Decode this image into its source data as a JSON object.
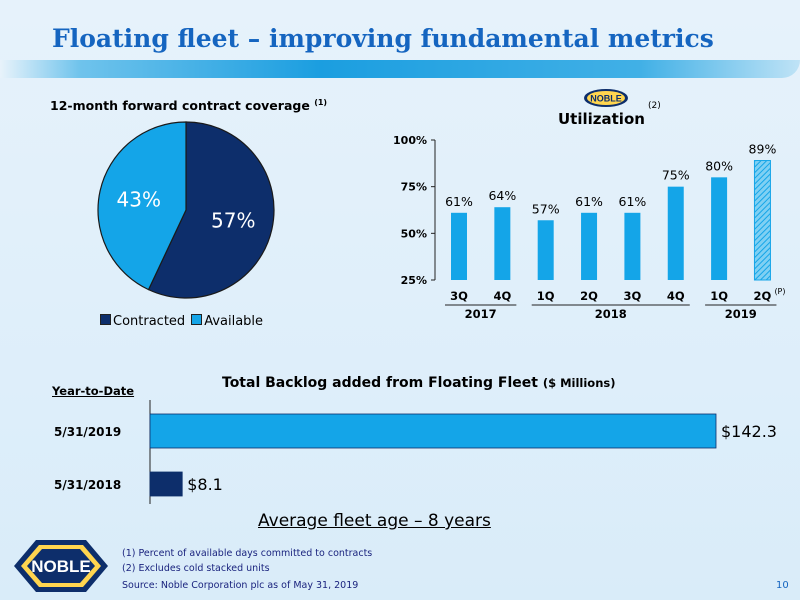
{
  "page": {
    "title": "Floating fleet – improving fundamental metrics",
    "page_number": "10",
    "avg_fleet_age": "Average fleet age – 8 years",
    "footnotes": [
      "(1) Percent of available days committed to contracts",
      "(2) Excludes cold stacked units",
      "Source: Noble Corporation plc as of May 31, 2019"
    ],
    "logo_text": "NOBLE",
    "logo_text_small": "NOBLE",
    "colors": {
      "dark_navy": "#0d2e6b",
      "light_blue": "#14a5e8",
      "title_blue": "#1565c0"
    }
  },
  "chart_data": [
    {
      "type": "pie",
      "title": "12-month forward contract coverage",
      "title_note": "(1)",
      "slices": [
        {
          "label": "Contracted",
          "value": 57,
          "display": "57%",
          "color": "#0d2e6b"
        },
        {
          "label": "Available",
          "value": 43,
          "display": "43%",
          "color": "#14a5e8"
        }
      ],
      "legend_position": "bottom"
    },
    {
      "type": "bar",
      "title": "Utilization",
      "title_note": "(2)",
      "categories": [
        "3Q",
        "4Q",
        "1Q",
        "2Q",
        "3Q",
        "4Q",
        "1Q",
        "2Q"
      ],
      "category_notes": [
        "",
        "",
        "",
        "",
        "",
        "",
        "",
        "(P)"
      ],
      "groups": [
        {
          "label": "2017",
          "from": 0,
          "to": 1
        },
        {
          "label": "2018",
          "from": 2,
          "to": 5
        },
        {
          "label": "2019",
          "from": 6,
          "to": 7
        }
      ],
      "values": [
        61,
        64,
        57,
        61,
        61,
        75,
        80,
        89
      ],
      "value_labels": [
        "61%",
        "64%",
        "57%",
        "61%",
        "61%",
        "75%",
        "80%",
        "89%"
      ],
      "projected": [
        false,
        false,
        false,
        false,
        false,
        false,
        false,
        true
      ],
      "ylim": [
        25,
        100
      ],
      "yticks": [
        "25%",
        "50%",
        "75%",
        "100%"
      ],
      "ytick_values": [
        25,
        50,
        75,
        100
      ],
      "grid": false
    },
    {
      "type": "bar",
      "orientation": "horizontal",
      "title": "Total Backlog added from Floating Fleet",
      "title_unit": "($ Millions)",
      "ylabel": "Year-to-Date",
      "categories": [
        "5/31/2019",
        "5/31/2018"
      ],
      "values": [
        142.3,
        8.1
      ],
      "value_labels": [
        "$142.3",
        "$8.1"
      ],
      "colors": [
        "#14a5e8",
        "#0d2e6b"
      ]
    }
  ]
}
